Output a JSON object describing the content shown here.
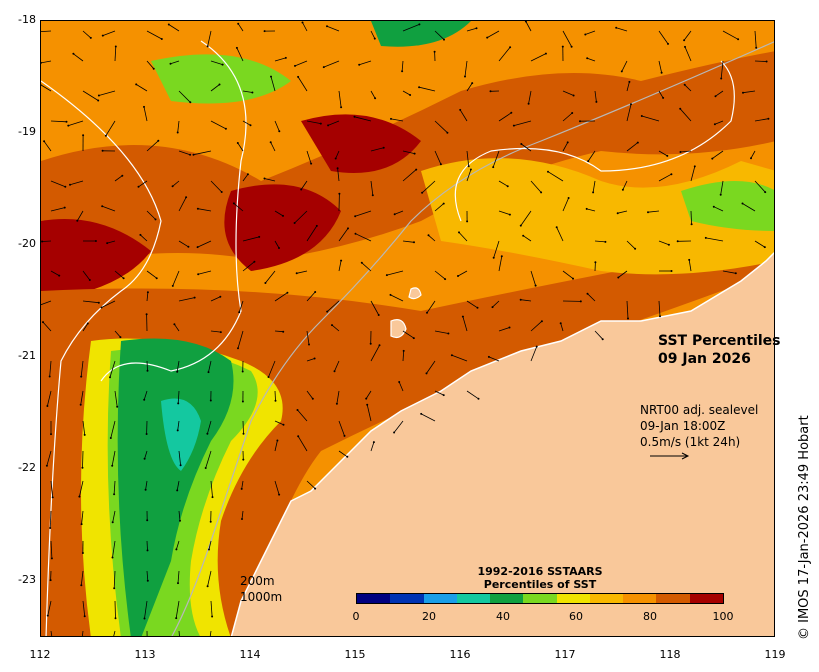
{
  "map": {
    "title_line1": "SST Percentiles",
    "title_line2": "09 Jan 2026",
    "current_label_line1": "NRT00 adj. sealevel",
    "current_label_line2": "09-Jan 18:00Z",
    "current_label_line3": "0.5m/s (1kt 24h)",
    "isobath_label_1": "200m",
    "isobath_label_2": "1000m",
    "x_ticks": [
      "112",
      "113",
      "114",
      "115",
      "116",
      "117",
      "118",
      "119"
    ],
    "y_ticks": [
      "-18",
      "-19",
      "-20",
      "-21",
      "-22",
      "-23"
    ],
    "colorbar_title_line1": "1992-2016 SSTAARS",
    "colorbar_title_line2": "Percentiles of SST",
    "colorbar_ticks": [
      "0",
      "20",
      "40",
      "60",
      "80",
      "100"
    ],
    "colorbar_colors": [
      "#000080",
      "#0033b3",
      "#1a9ee8",
      "#14c8a0",
      "#10a040",
      "#7ad820",
      "#f0e400",
      "#f8b800",
      "#f59100",
      "#d35a00",
      "#a50000"
    ],
    "land_color": "#f9c89a",
    "credit": "© IMOS 17-Jan-2026 23:49 Hobart"
  }
}
